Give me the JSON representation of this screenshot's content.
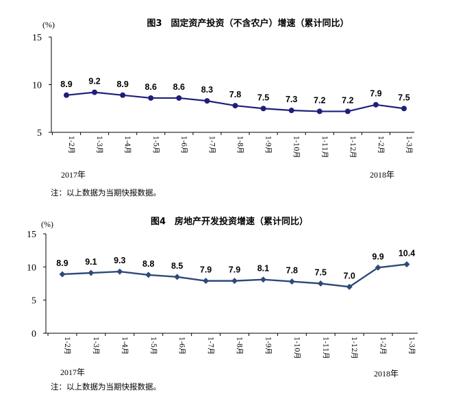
{
  "chart_data": [
    {
      "type": "line",
      "title": "图3　固定资产投资（不含农户）增速（累计同比）",
      "unit_label": "(%)",
      "categories": [
        "1-2月",
        "1-3月",
        "1-4月",
        "1-5月",
        "1-6月",
        "1-7月",
        "1-8月",
        "1-9月",
        "1-10月",
        "1-11月",
        "1-12月",
        "1-2月",
        "1-3月"
      ],
      "values": [
        8.9,
        9.2,
        8.9,
        8.6,
        8.6,
        8.3,
        7.8,
        7.5,
        7.3,
        7.2,
        7.2,
        7.9,
        7.5
      ],
      "data_labels": [
        "8.9",
        "9.2",
        "8.9",
        "8.6",
        "8.6",
        "8.3",
        "7.8",
        "7.5",
        "7.3",
        "7.2",
        "7.2",
        "7.9",
        "7.5"
      ],
      "ylim": [
        5,
        15
      ],
      "yticks": [
        "15",
        "10",
        "5"
      ],
      "year_labels": [
        "2017年",
        "2018年"
      ],
      "note": "注：以上数据为当期快报数据。",
      "line_color": "#1f1f7a",
      "grid": false
    },
    {
      "type": "line",
      "title": "图4　房地产开发投资增速（累计同比）",
      "unit_label": "(%)",
      "categories": [
        "1-2月",
        "1-3月",
        "1-4月",
        "1-5月",
        "1-6月",
        "1-7月",
        "1-8月",
        "1-9月",
        "1-10月",
        "1-11月",
        "1-12月",
        "1-2月",
        "1-3月"
      ],
      "values": [
        8.9,
        9.1,
        9.3,
        8.8,
        8.5,
        7.9,
        7.9,
        8.1,
        7.8,
        7.5,
        7.0,
        9.9,
        10.4
      ],
      "data_labels": [
        "8.9",
        "9.1",
        "9.3",
        "8.8",
        "8.5",
        "7.9",
        "7.9",
        "8.1",
        "7.8",
        "7.5",
        "7.0",
        "9.9",
        "10.4"
      ],
      "ylim": [
        0,
        15
      ],
      "yticks": [
        "15",
        "10",
        "5",
        "0"
      ],
      "year_labels": [
        "2017年",
        "2018年"
      ],
      "note": "注：以上数据为当期快报数据。",
      "line_color": "#2e4a78",
      "grid": false
    }
  ]
}
